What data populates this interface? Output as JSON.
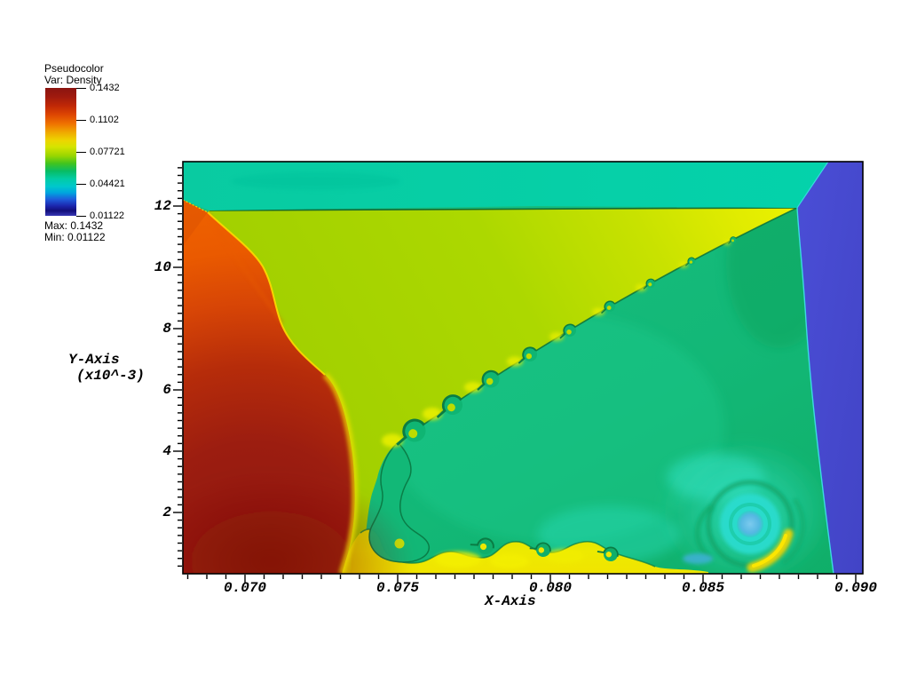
{
  "app": {
    "name": "visualization-viewer",
    "background": "#ffffff"
  },
  "legend": {
    "title": "Pseudocolor",
    "var_label": "Var: Density",
    "tick_labels": [
      "0.1432",
      "0.1102",
      "0.07721",
      "0.04421",
      "0.01122"
    ],
    "max_label": "Max: 0.1432",
    "min_label": "Min: 0.01122",
    "colorbar_top_color": "#8B1410",
    "colorbar_bottom_color": "#3838B4"
  },
  "axes": {
    "x": {
      "label": "X-Axis",
      "tick_labels": [
        "0.070",
        "0.075",
        "0.080",
        "0.085",
        "0.090"
      ]
    },
    "y": {
      "label": "Y-Axis",
      "scale_label": "(x10^-3)",
      "tick_labels": [
        "2",
        "4",
        "6",
        "8",
        "10",
        "12"
      ]
    }
  },
  "chart_data": {
    "type": "heatmap",
    "subtype": "pseudocolor-cfd-density-field",
    "title": "Pseudocolor",
    "variable": "Density",
    "xlabel": "X-Axis",
    "ylabel": "Y-Axis",
    "y_scale_note": "(x10^-3)",
    "xlim": [
      0.068,
      0.0902
    ],
    "ylim": [
      0,
      13.45
    ],
    "x_ticks": [
      0.07,
      0.075,
      0.08,
      0.085,
      0.09
    ],
    "y_ticks": [
      2,
      4,
      6,
      8,
      10,
      12
    ],
    "grid": false,
    "legend_position": "upper-left",
    "colorbar": {
      "min": 0.01122,
      "max": 0.1432,
      "tick_values": [
        0.1432,
        0.1102,
        0.07721,
        0.04421,
        0.01122
      ],
      "palette_top_to_bottom": [
        "#8B1410",
        "#C02806",
        "#EF7200",
        "#EDD500",
        "#9AD600",
        "#08BC64",
        "#02CCA4",
        "#00C8CC",
        "#1E5EDC",
        "#120E7A",
        "#3838B4"
      ]
    },
    "regions": [
      {
        "name": "top-post-shock-band",
        "color": "#06CFA6",
        "approx_density": 0.05,
        "extent": "full width above y=12e-3, right edge at x=0.0895"
      },
      {
        "name": "incident-shock-column",
        "color": "#4649D0",
        "approx_density": 0.018,
        "extent": "vertical band x>0.0885 full height"
      },
      {
        "name": "expansion-triangle",
        "color": "#BCDC00",
        "approx_density": 0.08,
        "extent": "between y=12e-3 line and slip line from triple point (0.0885,12e-3) to (0.0735,4e-3)"
      },
      {
        "name": "slip-line-kelvin-helmholtz-rollups",
        "color": "#0FB573",
        "approx_density": 0.062,
        "extent": "series of vortices along slip line, growing toward lower-left"
      },
      {
        "name": "post-reflection-region",
        "color": "#12B878",
        "approx_density": 0.058,
        "extent": "below slip line to wall"
      },
      {
        "name": "bow-shock-lobe",
        "color": "#F06300",
        "approx_density": 0.118,
        "extent": "curved left lobe from (0.069,12e-3) to wall"
      },
      {
        "name": "high-density-core",
        "color": "#9A1B10",
        "approx_density": 0.143,
        "extent": "bottom-left corner blob"
      },
      {
        "name": "wall-jet-yellow-band",
        "color": "#EEE800",
        "approx_density": 0.086,
        "extent": "wavy band along bottom wall x=0.0725..0.084"
      },
      {
        "name": "main-vortex",
        "color": "#2BDCCE",
        "approx_density": 0.04,
        "core_color": "#62BAE4",
        "core_density": 0.03,
        "center_x": 0.0845,
        "center_y": 0.0016
      }
    ]
  }
}
